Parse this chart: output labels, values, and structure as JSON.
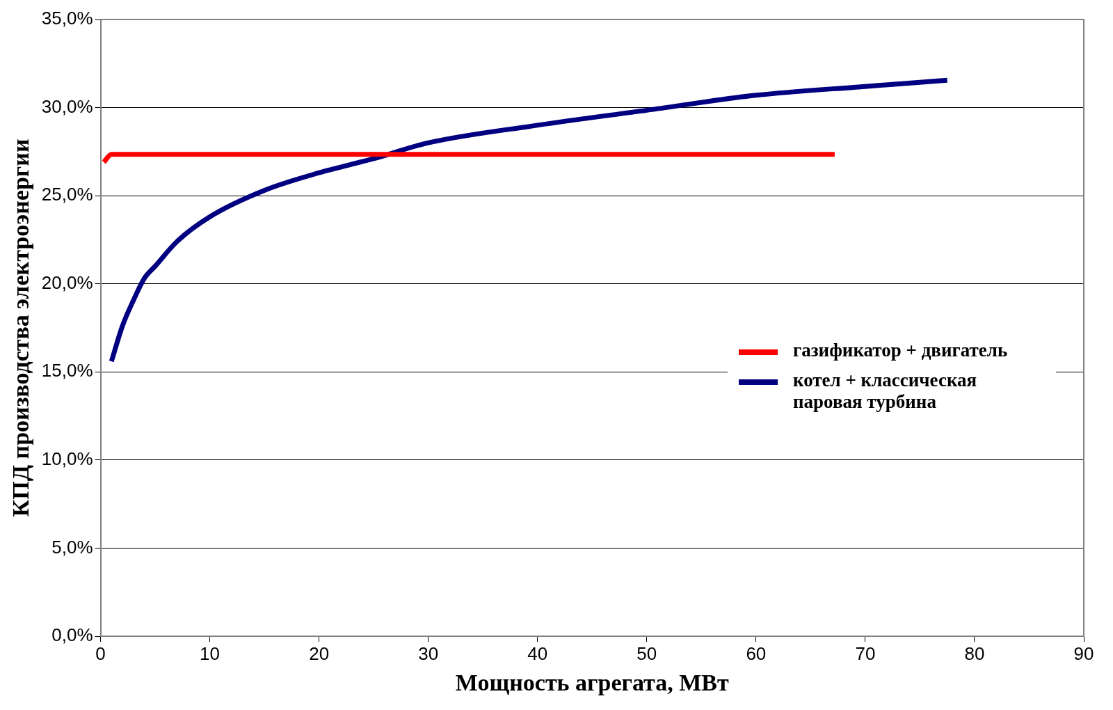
{
  "chart_data": {
    "type": "line",
    "xlabel": "Мощность агрегата, МВт",
    "ylabel": "КПД производства электроэнергии",
    "xlim": [
      0,
      90
    ],
    "xticks": [
      0,
      10,
      20,
      30,
      40,
      50,
      60,
      70,
      80,
      90
    ],
    "ylim": [
      0,
      35
    ],
    "yticks": [
      {
        "value": 0,
        "label": "0,0%"
      },
      {
        "value": 5,
        "label": "5,0%"
      },
      {
        "value": 10,
        "label": "10,0%"
      },
      {
        "value": 15,
        "label": "15,0%"
      },
      {
        "value": 20,
        "label": "20,0%"
      },
      {
        "value": 25,
        "label": "25,0%"
      },
      {
        "value": 30,
        "label": "30,0%"
      },
      {
        "value": 35,
        "label": "35,0%"
      }
    ],
    "grid": "y",
    "legend": "right",
    "marker": "none",
    "line_style": "solid",
    "series": [
      {
        "name": "газификатор + двигатель",
        "color": "#ff0000",
        "x": [
          0.3,
          1,
          67.2
        ],
        "values": [
          26.9,
          27.35,
          27.35
        ]
      },
      {
        "name": "котел + классическая паровая турбина",
        "color": "#000080",
        "x": [
          1,
          2,
          3,
          4,
          5,
          7,
          10,
          15,
          20,
          25,
          30,
          40,
          50,
          60,
          70,
          77.5
        ],
        "values": [
          15.6,
          17.6,
          19.05,
          20.3,
          21,
          22.4,
          23.8,
          25.3,
          26.3,
          27.1,
          28,
          29,
          29.85,
          30.7,
          31.2,
          31.55
        ]
      }
    ]
  }
}
